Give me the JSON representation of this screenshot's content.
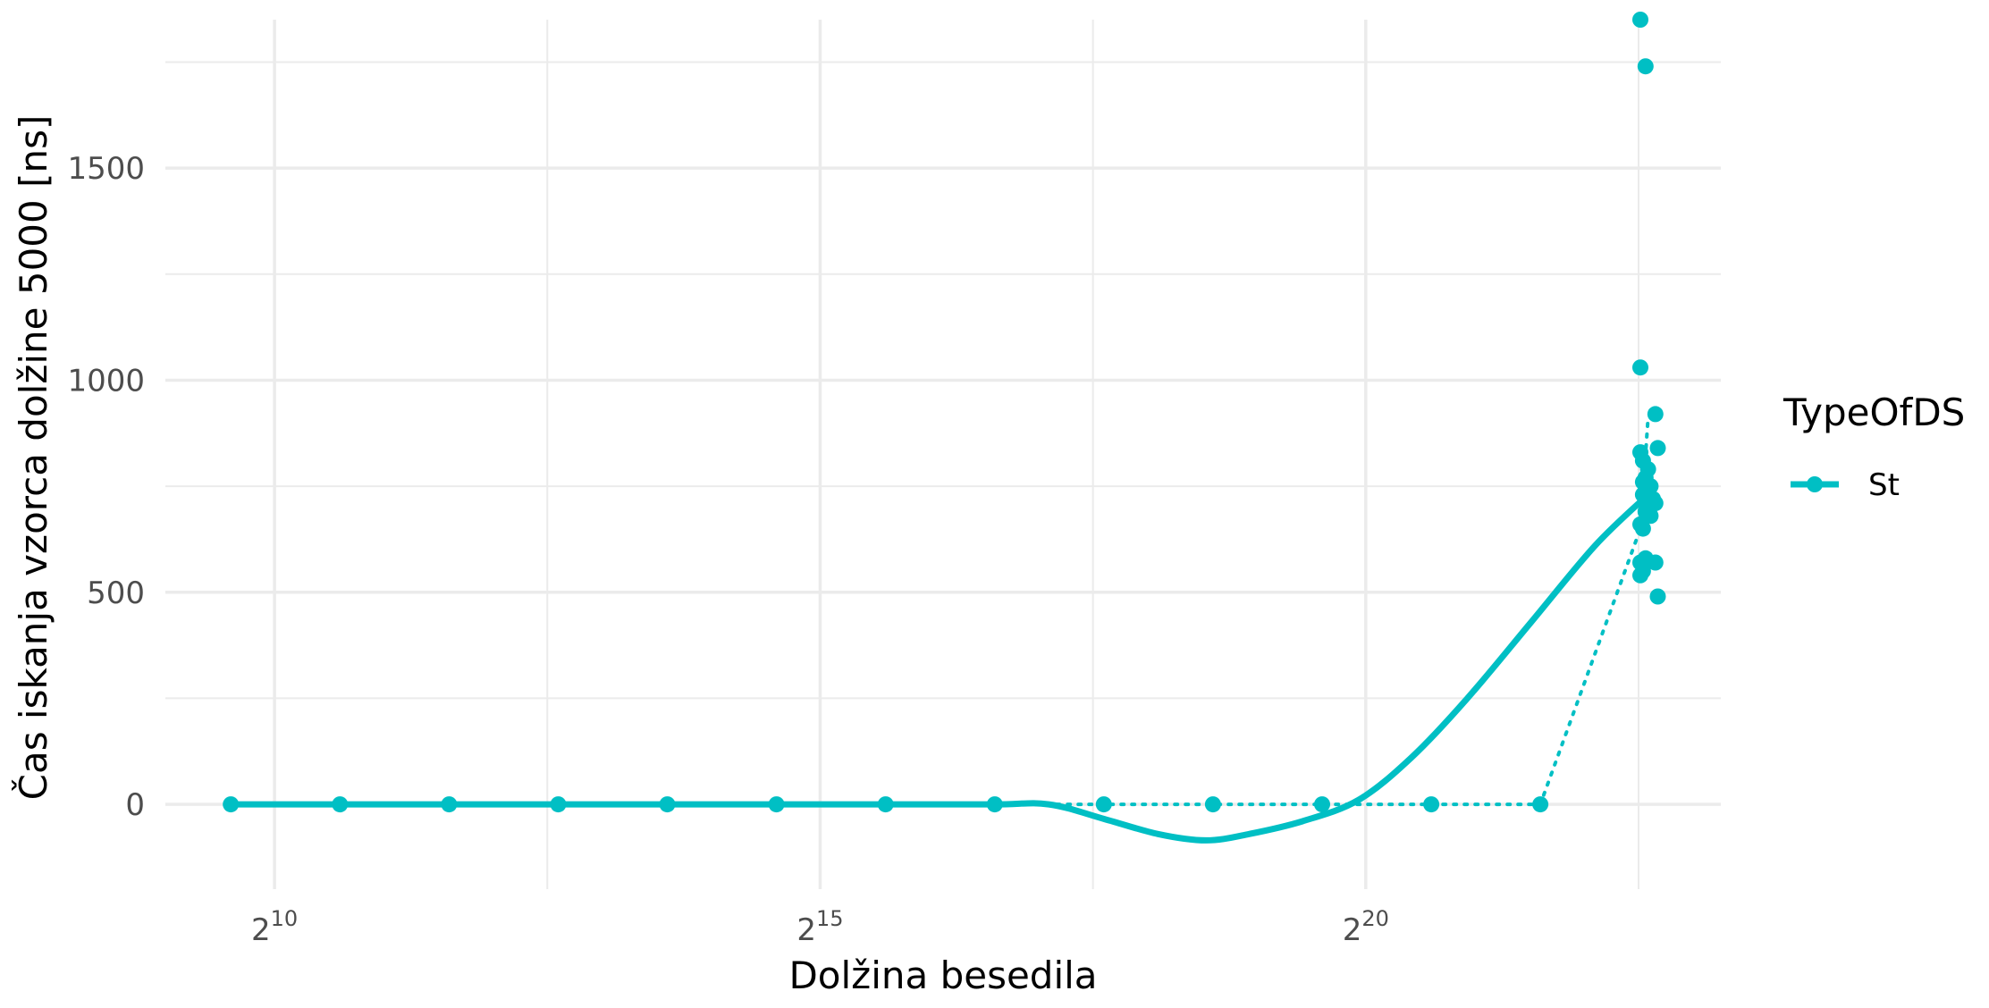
{
  "chart_data": {
    "type": "scatter",
    "title": "",
    "xlabel": "Dolžina besedila",
    "ylabel": "Čas iskanja vzorca dolžine 5000 [ns]",
    "x_scale": "log2",
    "xlim": [
      512,
      10000000
    ],
    "ylim": [
      -200,
      1850
    ],
    "x_ticks": [
      {
        "value": 1024,
        "base": "2",
        "exp": "10"
      },
      {
        "value": 32768,
        "base": "2",
        "exp": "15"
      },
      {
        "value": 1048576,
        "base": "2",
        "exp": "20"
      }
    ],
    "y_ticks": [
      {
        "value": 0,
        "label": "0"
      },
      {
        "value": 500,
        "label": "500"
      },
      {
        "value": 1000,
        "label": "1000"
      },
      {
        "value": 1500,
        "label": "1500"
      }
    ],
    "grid": true,
    "legend": {
      "title": "TypeOfDS",
      "position": "right",
      "entries": [
        {
          "label": "St",
          "color": "#00BFC4"
        }
      ]
    },
    "series": [
      {
        "name": "St",
        "color": "#00BFC4",
        "points": [
          [
            776,
            0
          ],
          [
            1552,
            0
          ],
          [
            3104,
            0
          ],
          [
            6208,
            0
          ],
          [
            12416,
            0
          ],
          [
            24832,
            0
          ],
          [
            49664,
            0
          ],
          [
            99328,
            0
          ],
          [
            198656,
            0
          ],
          [
            397312,
            0
          ],
          [
            794624,
            0
          ],
          [
            1589248,
            0
          ],
          [
            3178496,
            0
          ],
          [
            6000000,
            1850
          ],
          [
            6200000,
            1740
          ],
          [
            6000000,
            1030
          ],
          [
            6000000,
            830
          ],
          [
            6100000,
            810
          ],
          [
            6300000,
            790
          ],
          [
            6200000,
            770
          ],
          [
            6100000,
            760
          ],
          [
            6400000,
            750
          ],
          [
            6200000,
            740
          ],
          [
            6100000,
            730
          ],
          [
            6500000,
            720
          ],
          [
            6600000,
            710
          ],
          [
            6300000,
            700
          ],
          [
            6200000,
            690
          ],
          [
            6400000,
            680
          ],
          [
            6000000,
            660
          ],
          [
            6100000,
            650
          ],
          [
            6600000,
            920
          ],
          [
            6700000,
            840
          ],
          [
            6000000,
            570
          ],
          [
            6200000,
            580
          ],
          [
            6100000,
            550
          ],
          [
            6000000,
            540
          ],
          [
            6600000,
            570
          ],
          [
            6700000,
            490
          ]
        ],
        "mean_line": [
          [
            776,
            0
          ],
          [
            1552,
            0
          ],
          [
            3104,
            0
          ],
          [
            6208,
            0
          ],
          [
            12416,
            0
          ],
          [
            24832,
            0
          ],
          [
            49664,
            0
          ],
          [
            99328,
            0
          ],
          [
            198656,
            0
          ],
          [
            397312,
            0
          ],
          [
            794624,
            0
          ],
          [
            1589248,
            0
          ],
          [
            3178496,
            0
          ],
          [
            6000000,
            650
          ],
          [
            6300000,
            910
          ]
        ],
        "smooth_line": [
          [
            776,
            0
          ],
          [
            1552,
            0
          ],
          [
            3104,
            0
          ],
          [
            6208,
            0
          ],
          [
            12416,
            0
          ],
          [
            24832,
            0
          ],
          [
            49664,
            0
          ],
          [
            99328,
            0
          ],
          [
            140000,
            0
          ],
          [
            200000,
            -35
          ],
          [
            280000,
            -70
          ],
          [
            380000,
            -85
          ],
          [
            500000,
            -70
          ],
          [
            700000,
            -40
          ],
          [
            1000000,
            10
          ],
          [
            1400000,
            110
          ],
          [
            2000000,
            250
          ],
          [
            3000000,
            430
          ],
          [
            4500000,
            610
          ],
          [
            6300000,
            730
          ]
        ]
      }
    ]
  }
}
